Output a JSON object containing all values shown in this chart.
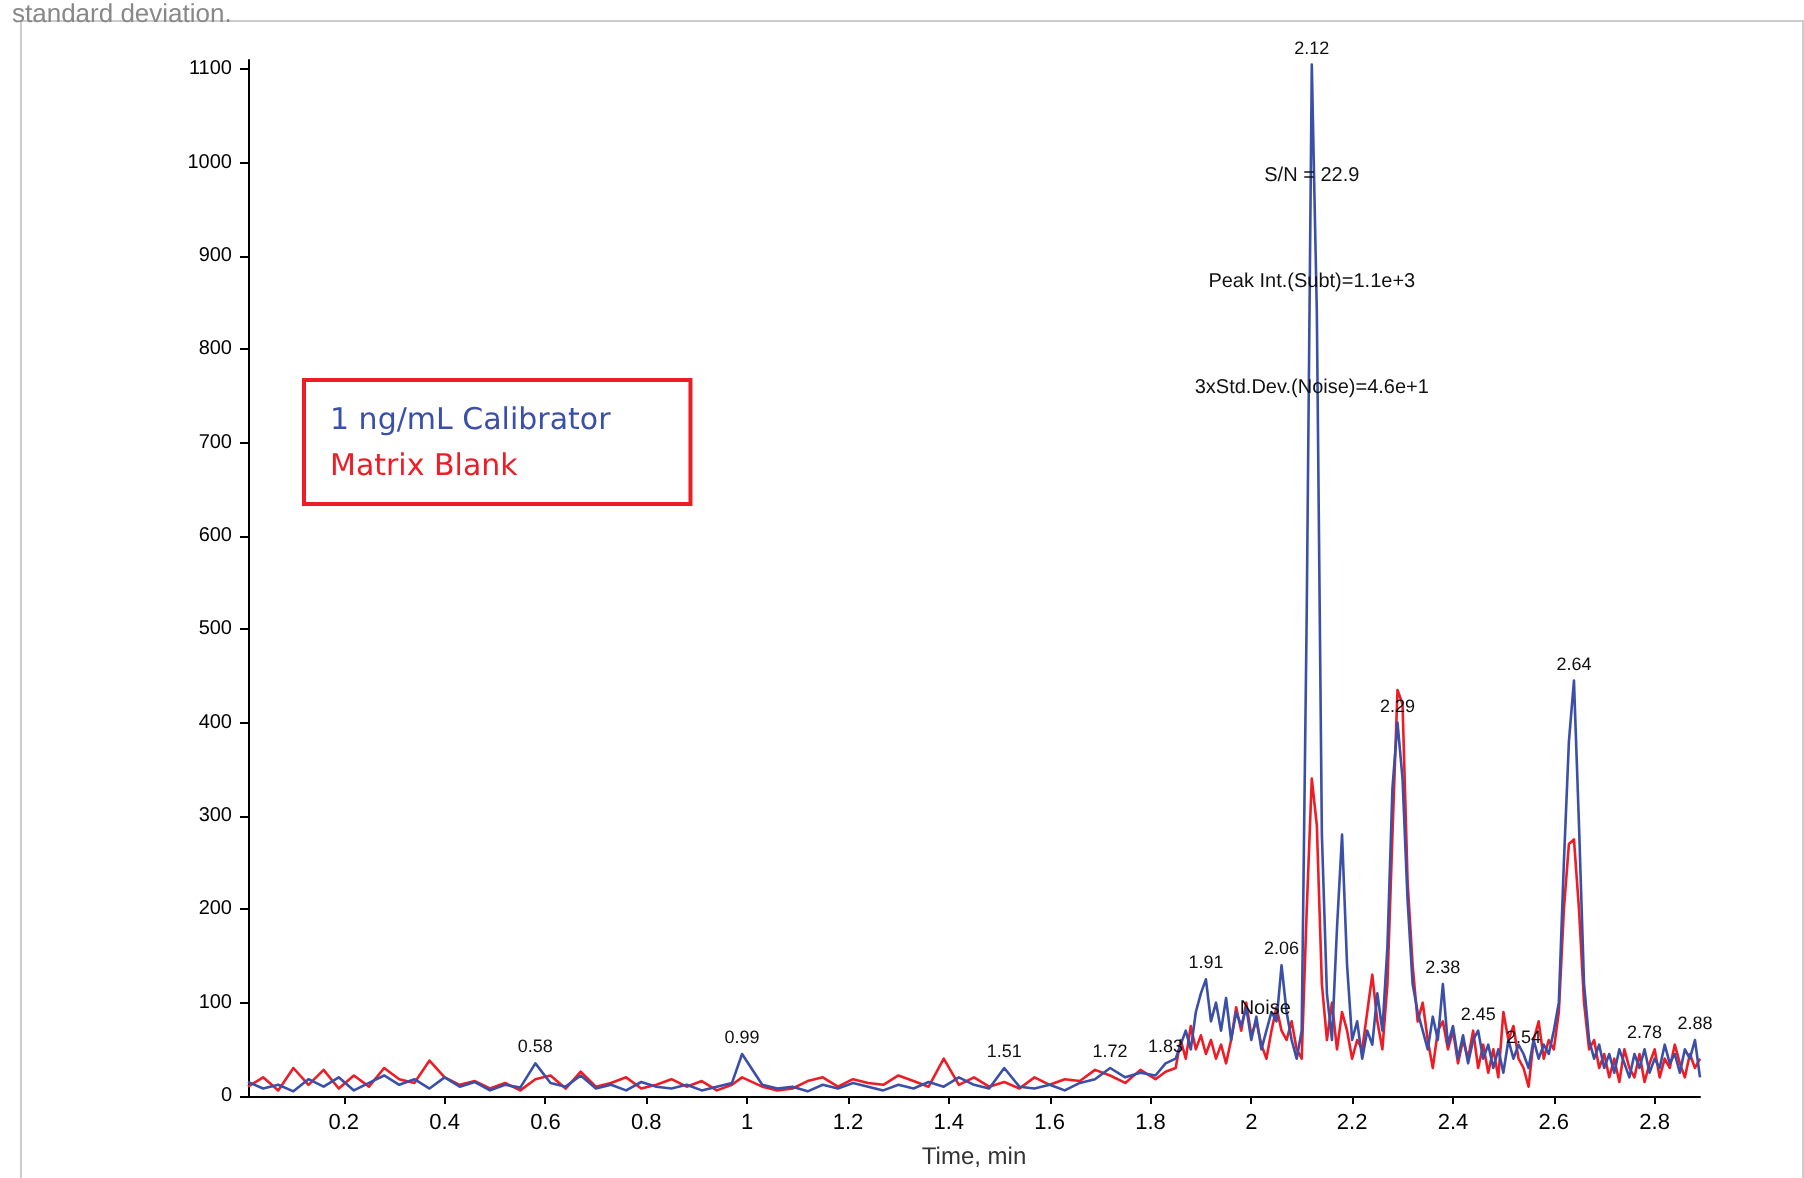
{
  "chart_data": {
    "type": "line",
    "xlabel": "Time, min",
    "annotations": [
      "standard deviation.",
      "S/N = 22.9",
      "Peak Int.(Subt)=1.1e+3",
      "3xStd.Dev.(Noise)=4.6e+1",
      "Noise",
      {
        "text": "0.58",
        "x": 0.58,
        "y": 35
      },
      {
        "text": "0.99",
        "x": 0.99,
        "y": 45
      },
      {
        "text": "1.51",
        "x": 1.51,
        "y": 30
      },
      {
        "text": "1.72",
        "x": 1.72,
        "y": 30
      },
      {
        "text": "1.83",
        "x": 1.83,
        "y": 35
      },
      {
        "text": "1.91",
        "x": 1.91,
        "y": 125
      },
      {
        "text": "2.06",
        "x": 2.06,
        "y": 140
      },
      {
        "text": "2.12",
        "x": 2.12,
        "y": 1105
      },
      {
        "text": "2.29",
        "x": 2.29,
        "y": 400
      },
      {
        "text": "2.38",
        "x": 2.38,
        "y": 120
      },
      {
        "text": "2.45",
        "x": 2.45,
        "y": 70
      },
      {
        "text": "2.54",
        "x": 2.54,
        "y": 45
      },
      {
        "text": "2.64",
        "x": 2.64,
        "y": 445
      },
      {
        "text": "2.78",
        "x": 2.78,
        "y": 50
      },
      {
        "text": "2.88",
        "x": 2.88,
        "y": 60
      }
    ],
    "x": [
      0.01,
      0.04,
      0.07,
      0.1,
      0.13,
      0.16,
      0.19,
      0.22,
      0.25,
      0.28,
      0.31,
      0.34,
      0.37,
      0.4,
      0.43,
      0.46,
      0.49,
      0.52,
      0.55,
      0.58,
      0.61,
      0.64,
      0.67,
      0.7,
      0.73,
      0.76,
      0.79,
      0.82,
      0.85,
      0.88,
      0.91,
      0.94,
      0.97,
      0.99,
      1.03,
      1.06,
      1.09,
      1.12,
      1.15,
      1.18,
      1.21,
      1.24,
      1.27,
      1.3,
      1.33,
      1.36,
      1.39,
      1.42,
      1.45,
      1.48,
      1.51,
      1.54,
      1.57,
      1.6,
      1.63,
      1.66,
      1.69,
      1.72,
      1.75,
      1.78,
      1.81,
      1.83,
      1.85,
      1.86,
      1.87,
      1.88,
      1.89,
      1.9,
      1.91,
      1.92,
      1.93,
      1.94,
      1.95,
      1.96,
      1.97,
      1.98,
      1.99,
      2.0,
      2.01,
      2.02,
      2.03,
      2.04,
      2.05,
      2.06,
      2.07,
      2.08,
      2.09,
      2.1,
      2.11,
      2.12,
      2.13,
      2.14,
      2.15,
      2.16,
      2.17,
      2.18,
      2.19,
      2.2,
      2.21,
      2.22,
      2.23,
      2.24,
      2.25,
      2.26,
      2.27,
      2.28,
      2.29,
      2.3,
      2.31,
      2.32,
      2.33,
      2.34,
      2.35,
      2.36,
      2.37,
      2.38,
      2.39,
      2.4,
      2.41,
      2.42,
      2.43,
      2.44,
      2.45,
      2.46,
      2.47,
      2.48,
      2.49,
      2.5,
      2.51,
      2.52,
      2.53,
      2.54,
      2.55,
      2.56,
      2.57,
      2.58,
      2.59,
      2.6,
      2.61,
      2.62,
      2.63,
      2.64,
      2.65,
      2.66,
      2.67,
      2.68,
      2.69,
      2.7,
      2.71,
      2.72,
      2.73,
      2.74,
      2.75,
      2.76,
      2.77,
      2.78,
      2.79,
      2.8,
      2.81,
      2.82,
      2.83,
      2.84,
      2.85,
      2.86,
      2.87,
      2.88,
      2.89
    ],
    "series": [
      {
        "name": "Matrix Blank",
        "color": "#ee1c25",
        "values": [
          10,
          20,
          6,
          30,
          12,
          28,
          8,
          22,
          10,
          30,
          18,
          14,
          38,
          20,
          12,
          16,
          8,
          14,
          6,
          18,
          22,
          8,
          26,
          10,
          14,
          20,
          8,
          12,
          18,
          10,
          16,
          6,
          12,
          20,
          10,
          6,
          8,
          16,
          20,
          10,
          18,
          14,
          12,
          22,
          16,
          10,
          40,
          12,
          20,
          10,
          15,
          8,
          20,
          12,
          18,
          16,
          28,
          22,
          14,
          28,
          18,
          26,
          30,
          60,
          40,
          75,
          50,
          65,
          45,
          60,
          40,
          55,
          35,
          60,
          95,
          70,
          100,
          65,
          80,
          55,
          40,
          70,
          95,
          70,
          60,
          80,
          50,
          40,
          200,
          340,
          290,
          120,
          60,
          100,
          50,
          90,
          70,
          40,
          60,
          50,
          90,
          130,
          80,
          50,
          120,
          280,
          435,
          420,
          230,
          140,
          80,
          100,
          60,
          30,
          70,
          80,
          50,
          70,
          35,
          60,
          40,
          70,
          30,
          55,
          25,
          50,
          20,
          90,
          60,
          75,
          40,
          30,
          10,
          60,
          80,
          40,
          60,
          50,
          90,
          200,
          270,
          275,
          200,
          100,
          50,
          60,
          30,
          45,
          20,
          40,
          15,
          50,
          30,
          20,
          45,
          15,
          35,
          50,
          20,
          40,
          30,
          55,
          35,
          20,
          45,
          30,
          40
        ]
      },
      {
        "name": "1 ng/mL Calibrator",
        "color": "#3a4fa8",
        "values": [
          15,
          8,
          12,
          5,
          18,
          10,
          20,
          6,
          14,
          22,
          12,
          18,
          8,
          20,
          10,
          15,
          6,
          12,
          9,
          35,
          14,
          10,
          22,
          8,
          12,
          6,
          15,
          10,
          8,
          12,
          6,
          10,
          14,
          45,
          12,
          8,
          10,
          5,
          12,
          8,
          14,
          10,
          6,
          12,
          8,
          15,
          10,
          20,
          12,
          8,
          30,
          10,
          8,
          12,
          6,
          14,
          18,
          30,
          20,
          25,
          22,
          35,
          40,
          55,
          70,
          50,
          90,
          110,
          125,
          80,
          100,
          70,
          105,
          60,
          90,
          75,
          95,
          60,
          85,
          50,
          70,
          90,
          80,
          140,
          90,
          60,
          40,
          70,
          520,
          1105,
          840,
          280,
          110,
          60,
          180,
          280,
          140,
          60,
          80,
          40,
          70,
          55,
          110,
          70,
          160,
          330,
          400,
          340,
          210,
          120,
          90,
          70,
          50,
          85,
          60,
          120,
          55,
          75,
          40,
          65,
          35,
          60,
          70,
          40,
          55,
          30,
          50,
          25,
          60,
          40,
          55,
          45,
          30,
          60,
          40,
          55,
          45,
          70,
          100,
          250,
          380,
          445,
          290,
          120,
          60,
          40,
          55,
          30,
          45,
          25,
          50,
          35,
          20,
          45,
          30,
          50,
          25,
          40,
          30,
          55,
          35,
          45,
          25,
          50,
          40,
          60,
          20
        ]
      }
    ],
    "xlim": [
      0.01,
      2.89
    ],
    "xticks": [
      0.2,
      0.4,
      0.6,
      0.8,
      1.0,
      1.2,
      1.4,
      1.6,
      1.8,
      2.0,
      2.2,
      2.4,
      2.6,
      2.8
    ],
    "ylim": [
      0,
      1110
    ],
    "yticks": [
      0,
      100,
      200,
      300,
      400,
      500,
      600,
      700,
      800,
      900,
      1000,
      1100
    ],
    "grid": false,
    "legend": "top left",
    "marker": "none",
    "line_style": "solid"
  }
}
